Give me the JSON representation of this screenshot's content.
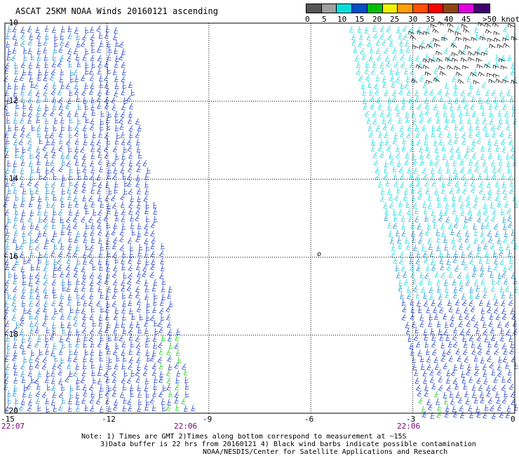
{
  "title": "ASCAT 25KM NOAA Winds 20160121 ascending",
  "legend": {
    "levels": [
      "0",
      "5",
      "10",
      "15",
      "20",
      "25",
      "30",
      "35",
      "40",
      "45",
      ">50 knots"
    ],
    "colors": [
      "#555555",
      "#a0a0a0",
      "#00e0e0",
      "#0050c8",
      "#00c000",
      "#f0f000",
      "#ffa000",
      "#ff5000",
      "#ff0000",
      "#8b4513",
      "#e000e0",
      "#400070"
    ]
  },
  "y_ticks": [
    "-10",
    "-12",
    "-14",
    "-16",
    "-18",
    "-20"
  ],
  "x_ticks": [
    "-15",
    "-12",
    "-9",
    "-6",
    "-3",
    "0"
  ],
  "times": [
    "22:07",
    "22:06",
    "22:06"
  ],
  "notes": [
    "Note: 1) Times are GMT 2)Times along bottom correspond to measurement at ~15S",
    "3)Data buffer is 22 hrs from 20160121 4) Black wind barbs indicate possible contamination",
    "NOAA/NESDIS/Center for Satellite Applications and Research"
  ],
  "chart_data": {
    "type": "map",
    "lon_range": [
      -15,
      0
    ],
    "lat_range": [
      -20,
      -10
    ],
    "grid": true
  }
}
